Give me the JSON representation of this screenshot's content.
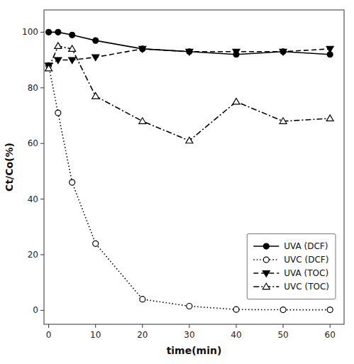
{
  "chart_data": {
    "type": "line",
    "x": [
      0,
      2,
      5,
      10,
      20,
      30,
      40,
      50,
      60
    ],
    "series": [
      {
        "name": "UVA (DCF)",
        "color": "#000000",
        "marker": "circle",
        "line_style": "solid",
        "values": [
          100,
          100,
          99,
          97,
          94,
          93,
          92,
          93,
          92
        ]
      },
      {
        "name": "UVC (DCF)",
        "color": "#000000",
        "marker": "circle-open",
        "line_style": "dotted",
        "values": [
          88,
          71,
          46,
          24,
          4,
          1.5,
          0.3,
          0.2,
          0.2
        ]
      },
      {
        "name": "UVA (TOC)",
        "color": "#000000",
        "marker": "triangle-down",
        "line_style": "dashed",
        "values": [
          88,
          90,
          90,
          91,
          94,
          93,
          93,
          93,
          94
        ]
      },
      {
        "name": "UVC (TOC)",
        "color": "#000000",
        "marker": "triangle-up-open",
        "line_style": "dashdot",
        "values": [
          87,
          95,
          94,
          77,
          68,
          61,
          75,
          68,
          69
        ]
      }
    ],
    "x_label": "time(min)",
    "y_label": "Ct/Co(%)",
    "xlim": [
      -1,
      63
    ],
    "ylim": [
      -5,
      108
    ],
    "xticks": [
      0,
      10,
      20,
      30,
      40,
      50,
      60
    ],
    "yticks": [
      0,
      20,
      40,
      60,
      80,
      100
    ],
    "grid": false,
    "legend": "lower right"
  }
}
